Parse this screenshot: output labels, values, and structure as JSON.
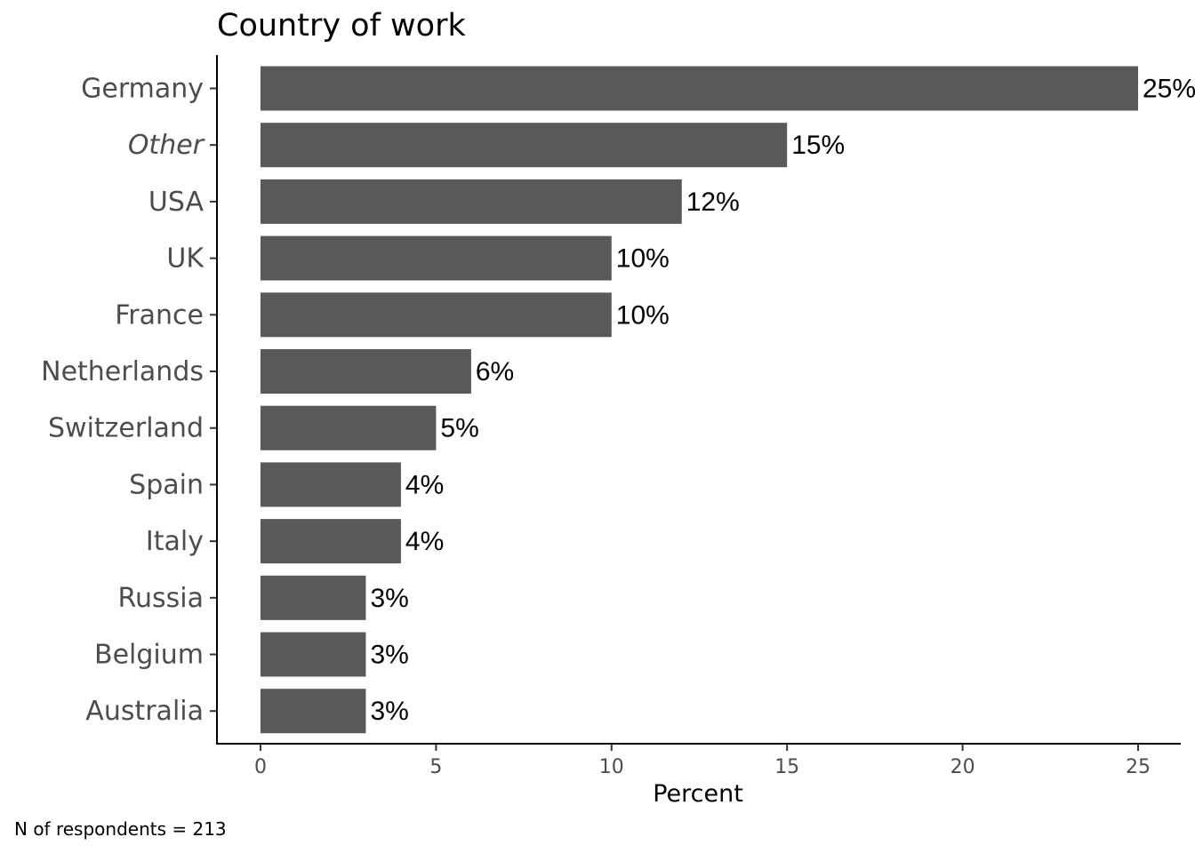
{
  "chart_data": {
    "type": "bar",
    "orientation": "horizontal",
    "title": "Country of work",
    "xlabel": "Percent",
    "ylabel": "",
    "xlim": [
      0,
      25.5
    ],
    "xticks": [
      0,
      5,
      10,
      15,
      20,
      25
    ],
    "categories": [
      "Germany",
      "Other",
      "USA",
      "UK",
      "France",
      "Netherlands",
      "Switzerland",
      "Spain",
      "Italy",
      "Russia",
      "Belgium",
      "Australia"
    ],
    "italic_categories": [
      "Other"
    ],
    "values": [
      25,
      15,
      12,
      10,
      10,
      6,
      5,
      4,
      4,
      3,
      3,
      3
    ],
    "labels": [
      "25%",
      "15%",
      "12%",
      "10%",
      "10%",
      "6%",
      "5%",
      "4%",
      "4%",
      "3%",
      "3%",
      "3%"
    ],
    "bar_color": "#595959",
    "grid": false,
    "legend": "none",
    "caption": "N of respondents = 213"
  }
}
